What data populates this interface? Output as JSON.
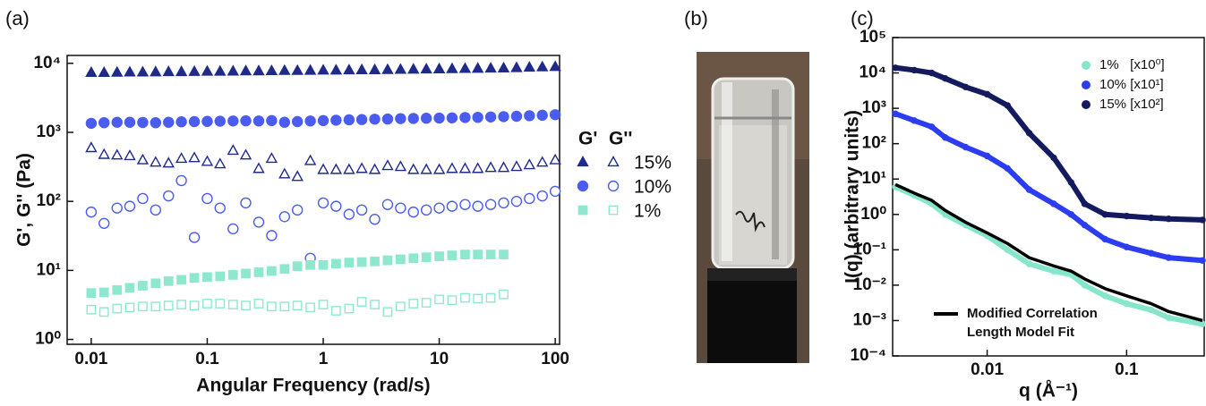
{
  "chart_data": [
    {
      "type": "scatter",
      "label": "(a)",
      "x_label": "Angular Frequency (rad/s)",
      "y_label": "G', G'' (Pa)",
      "log_x": true,
      "log_y": true,
      "xlim": [
        0.0062,
        109
      ],
      "ylim": [
        0.85,
        13000
      ],
      "xticks": [
        0.01,
        0.1,
        1,
        10,
        100
      ],
      "yticks": [
        {
          "value": 1,
          "label": "10⁰"
        },
        {
          "value": 10,
          "label": "10¹"
        },
        {
          "value": 100,
          "label": "10²"
        },
        {
          "value": 1000,
          "label": "10³"
        },
        {
          "value": 10000,
          "label": "10⁴"
        }
      ],
      "legend": {
        "columns": [
          "G'",
          "G''"
        ],
        "rows": [
          "15%",
          "10%",
          "1%"
        ]
      },
      "x": [
        0.01,
        0.0129,
        0.0167,
        0.0215,
        0.0278,
        0.0359,
        0.0464,
        0.0599,
        0.0774,
        0.1,
        0.129,
        0.167,
        0.215,
        0.278,
        0.359,
        0.464,
        0.599,
        0.774,
        1,
        1.29,
        1.67,
        2.15,
        2.78,
        3.59,
        4.64,
        5.99,
        7.74,
        10,
        12.9,
        16.7,
        21.5,
        27.8,
        35.9,
        46.4,
        59.9,
        77.4,
        100
      ],
      "series": [
        {
          "marker": "triangle",
          "filled": true,
          "color": "#1f2a8a",
          "values": [
            7400,
            7400,
            7450,
            7500,
            7500,
            7550,
            7600,
            7600,
            7650,
            7700,
            7700,
            7750,
            7800,
            7800,
            7850,
            7900,
            7900,
            7950,
            8000,
            8000,
            8050,
            8100,
            8100,
            8150,
            8200,
            8250,
            8300,
            8350,
            8400,
            8450,
            8500,
            8550,
            8600,
            8700,
            8800,
            8900,
            9000
          ]
        },
        {
          "marker": "triangle",
          "filled": false,
          "color": "#1f2a8a",
          "values": [
            600,
            480,
            470,
            460,
            400,
            370,
            360,
            420,
            430,
            380,
            350,
            550,
            470,
            300,
            420,
            250,
            230,
            390,
            290,
            290,
            290,
            300,
            290,
            330,
            320,
            290,
            290,
            290,
            300,
            300,
            300,
            310,
            310,
            320,
            340,
            370,
            400
          ]
        },
        {
          "marker": "circle",
          "filled": true,
          "color": "#4b5cf0",
          "values": [
            1350,
            1380,
            1400,
            1400,
            1390,
            1380,
            1400,
            1420,
            1430,
            1440,
            1450,
            1460,
            1470,
            1460,
            1480,
            1400,
            1430,
            1460,
            1480,
            1500,
            1520,
            1530,
            1550,
            1560,
            1580,
            1590,
            1600,
            1610,
            1620,
            1640,
            1650,
            1670,
            1690,
            1710,
            1740,
            1770,
            1800
          ]
        },
        {
          "marker": "circle",
          "filled": false,
          "color": "#4b5cf0",
          "values": [
            70,
            48,
            80,
            85,
            110,
            75,
            120,
            200,
            30,
            110,
            80,
            40,
            95,
            50,
            32,
            60,
            75,
            15,
            95,
            85,
            65,
            75,
            55,
            90,
            80,
            70,
            75,
            80,
            85,
            90,
            85,
            90,
            95,
            100,
            110,
            120,
            140
          ]
        },
        {
          "marker": "square",
          "filled": true,
          "color": "#8ee8d0",
          "values": [
            4.7,
            4.8,
            5.2,
            5.6,
            6,
            6.5,
            7,
            7.3,
            7.8,
            8,
            8.2,
            8.6,
            9,
            9.4,
            9.8,
            10.5,
            11.5,
            12,
            12,
            12.5,
            13,
            13.2,
            13.5,
            14,
            14.5,
            15,
            15.5,
            16,
            16.5,
            17,
            17,
            17,
            17,
            null,
            null,
            null,
            null
          ]
        },
        {
          "marker": "square",
          "filled": false,
          "color": "#8ee8d0",
          "values": [
            2.7,
            2.5,
            2.8,
            2.9,
            3,
            3,
            3.1,
            3.2,
            3.1,
            3.3,
            3.3,
            3.2,
            3.1,
            3.3,
            3,
            3,
            3.1,
            2.9,
            3.2,
            2.6,
            2.8,
            3.5,
            3.2,
            2.5,
            3,
            3.3,
            3.4,
            3.8,
            3.7,
            4,
            3.9,
            4,
            4.5,
            null,
            null,
            null,
            null
          ]
        }
      ]
    },
    {
      "type": "scatter",
      "label": "(c)",
      "x_label": "q (Å⁻¹)",
      "y_label": "I(q) (arbitrary units)",
      "log_x": true,
      "log_y": true,
      "xlim": [
        0.0021,
        0.36
      ],
      "ylim": [
        0.0001,
        100000
      ],
      "xticks": [
        0.01,
        0.1
      ],
      "yticks": [
        {
          "value": 0.0001,
          "label": "10⁻⁴"
        },
        {
          "value": 0.001,
          "label": "10⁻³"
        },
        {
          "value": 0.01,
          "label": "10⁻²"
        },
        {
          "value": 0.1,
          "label": "10⁻¹"
        },
        {
          "value": 1,
          "label": "10⁰"
        },
        {
          "value": 10,
          "label": "10¹"
        },
        {
          "value": 100,
          "label": "10²"
        },
        {
          "value": 1000,
          "label": "10³"
        },
        {
          "value": 10000,
          "label": "10⁴"
        },
        {
          "value": 100000,
          "label": "10⁵"
        }
      ],
      "x": [
        0.0022,
        0.003,
        0.004,
        0.005,
        0.007,
        0.01,
        0.014,
        0.02,
        0.03,
        0.04,
        0.05,
        0.07,
        0.1,
        0.15,
        0.2,
        0.35
      ],
      "series": [
        {
          "name": "1%   [x10⁰]",
          "marker": "circle",
          "color": "#86e6cc",
          "values": [
            6,
            3.5,
            2,
            1,
            0.5,
            0.25,
            0.1,
            0.04,
            0.025,
            0.02,
            0.01,
            0.005,
            0.003,
            0.002,
            0.0012,
            0.0008
          ]
        },
        {
          "name": "Modified Correlation Length Model Fit",
          "marker": "line",
          "color": "#000000",
          "values": [
            7,
            4,
            2.5,
            1.3,
            0.6,
            0.3,
            0.15,
            0.06,
            0.035,
            0.025,
            0.015,
            0.008,
            0.005,
            0.003,
            0.0018,
            0.001
          ]
        },
        {
          "name": "10% [x10¹]",
          "marker": "circle",
          "color": "#2c3cf0",
          "values": [
            700,
            450,
            300,
            150,
            80,
            45,
            20,
            5,
            2,
            1,
            0.5,
            0.2,
            0.12,
            0.08,
            0.06,
            0.05
          ]
        },
        {
          "name": "15% [x10²]",
          "marker": "circle",
          "color": "#141a5e",
          "values": [
            14000,
            12000,
            10000,
            7000,
            4000,
            2500,
            1200,
            200,
            40,
            8,
            2,
            1,
            0.9,
            0.8,
            0.75,
            0.7
          ]
        }
      ]
    }
  ],
  "image_panel": {
    "label": "(b)"
  }
}
